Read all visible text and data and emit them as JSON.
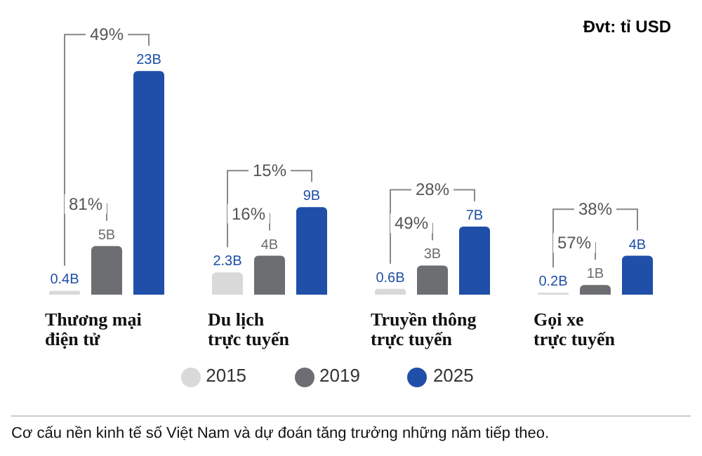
{
  "chart_data": {
    "type": "bar",
    "ylabel": "Đvt: tỉ USD",
    "categories": [
      "Thương mại\nđiện tử",
      "Du lịch\ntrực tuyến",
      "Truyền thông\ntrực tuyến",
      "Gọi xe\ntrực tuyến"
    ],
    "series": [
      {
        "name": "2015",
        "color": "#d9d9d9",
        "values": [
          0.4,
          2.3,
          0.6,
          0.2
        ],
        "value_labels": [
          "0.4B",
          "2.3B",
          "0.6B",
          "0.2B"
        ]
      },
      {
        "name": "2019",
        "color": "#6d6e71",
        "values": [
          5,
          4,
          3,
          1
        ],
        "value_labels": [
          "5B",
          "4B",
          "3B",
          "1B"
        ]
      },
      {
        "name": "2025",
        "color": "#1f4fa8",
        "values": [
          23,
          9,
          7,
          4
        ],
        "value_labels": [
          "23B",
          "9B",
          "7B",
          "4B"
        ]
      }
    ],
    "ylim": [
      0,
      28
    ],
    "legend": "bottom",
    "annotations": [
      "49%",
      "81%",
      "15%",
      "16%",
      "28%",
      "49%",
      "38%",
      "57%",
      "Cơ cấu nền kinh tế số Việt Nam và dự đoán tăng trưởng những năm tiếp theo."
    ]
  }
}
